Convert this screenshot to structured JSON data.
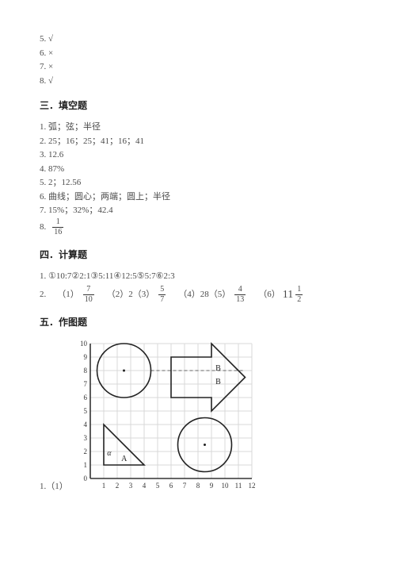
{
  "top_items": [
    {
      "label": "5. √"
    },
    {
      "label": "6. ×"
    },
    {
      "label": "7. ×"
    },
    {
      "label": "8. √"
    }
  ],
  "sections": {
    "s3": {
      "heading": "三．填空题",
      "items": [
        "1. 弧；弦；半径",
        "2. 25；16；25；41；16；41",
        "3. 12.6",
        "4. 87%",
        "5. 2；12.56",
        "6. 曲线；圆心；两端；圆上；半径",
        "7. 15%；32%；42.4"
      ],
      "item8_prefix": "8.",
      "item8_fraction": {
        "num": "1",
        "den": "16"
      }
    },
    "s4": {
      "heading": "四．计算题",
      "line1": "1. ①10:7②2:1③5:11④12:5⑤5:7⑥2:3",
      "line2_prefix": "2.",
      "parts": [
        {
          "label": "（1）",
          "frac": {
            "num": "7",
            "den": "10"
          }
        },
        {
          "label": "（2）2（3）",
          "frac": {
            "num": "5",
            "den": "7"
          }
        },
        {
          "label": "（4）28（5）",
          "frac": {
            "num": "4",
            "den": "13"
          }
        },
        {
          "label": "（6）",
          "mixed": {
            "whole": "11",
            "num": "1",
            "den": "2"
          }
        }
      ]
    },
    "s5": {
      "heading": "五．作图题",
      "figure_label": "1.（1）",
      "grid": {
        "x_ticks": [
          "1",
          "2",
          "3",
          "4",
          "5",
          "6",
          "7",
          "8",
          "9",
          "10",
          "11",
          "12"
        ],
        "y_ticks": [
          "10",
          "9",
          "8",
          "7",
          "6",
          "5",
          "4",
          "3",
          "2",
          "1",
          "0"
        ],
        "cols": 12,
        "rows": 10,
        "cell": 17,
        "colors": {
          "grid": "#d8d8d8",
          "axis": "#333333",
          "shape": "#222222",
          "dashed": "#666666"
        },
        "circle1": {
          "cx_cell": 2.5,
          "cy_cell": 8,
          "r_cell": 2
        },
        "circle2": {
          "cx_cell": 8.5,
          "cy_cell": 2.5,
          "r_cell": 2
        },
        "triangle_A": {
          "points_cells": [
            [
              1,
              1
            ],
            [
              1,
              4
            ],
            [
              4,
              1
            ]
          ],
          "label": "A",
          "label_at_cell": [
            2.3,
            1.3
          ],
          "alpha_label": "α",
          "alpha_at_cell": [
            1.25,
            1.7
          ]
        },
        "arrow_B": {
          "points_cells": [
            [
              6,
              6
            ],
            [
              9,
              6
            ],
            [
              9,
              5
            ],
            [
              11.5,
              7.5
            ],
            [
              9,
              10
            ],
            [
              9,
              9
            ],
            [
              6,
              9
            ]
          ],
          "labels": [
            {
              "text": "B",
              "at_cell": [
                9.3,
                8.0
              ]
            },
            {
              "text": "B",
              "at_cell": [
                9.3,
                7.0
              ]
            }
          ]
        },
        "dashed_line": {
          "from_cell": [
            4.5,
            8
          ],
          "to_cell": [
            11.5,
            8
          ]
        }
      }
    }
  }
}
